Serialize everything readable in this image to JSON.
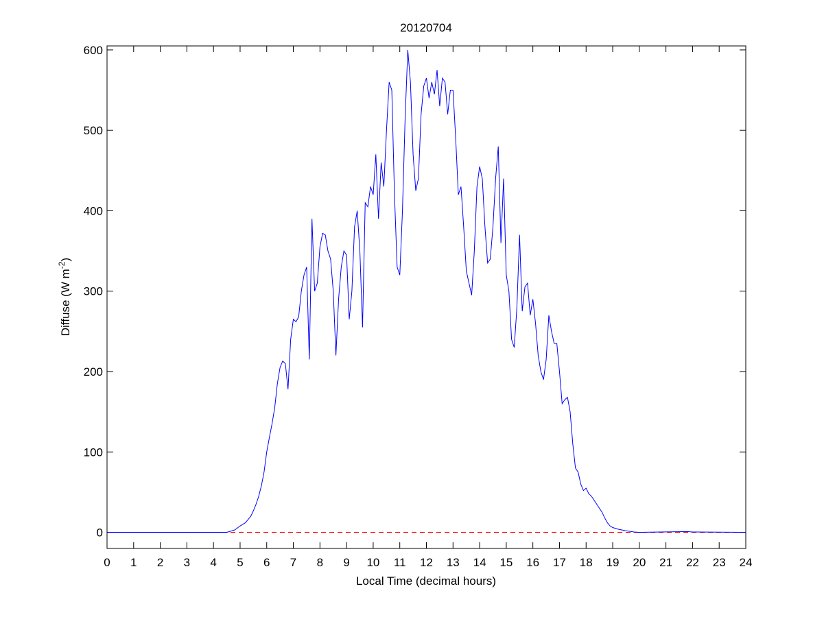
{
  "chart_data": {
    "type": "line",
    "title": "20120704",
    "x_label": "Local Time (decimal hours)",
    "y_label": {
      "text": "Diffuse (W m",
      "superscript": "-2",
      "suffix": ")"
    },
    "xlim": [
      0,
      24
    ],
    "xticks": [
      0,
      1,
      2,
      3,
      4,
      5,
      6,
      7,
      8,
      9,
      10,
      11,
      12,
      13,
      14,
      15,
      16,
      17,
      18,
      19,
      20,
      21,
      22,
      23,
      24
    ],
    "ylim": [
      -20,
      605
    ],
    "yticks": [
      0,
      100,
      200,
      300,
      400,
      500,
      600
    ],
    "grid": false,
    "reference_line": {
      "value": 0,
      "color": "#ff0000",
      "style": "dashed"
    },
    "x": [
      0,
      4.5,
      4.6,
      4.8,
      5.0,
      5.1,
      5.2,
      5.3,
      5.4,
      5.5,
      5.6,
      5.7,
      5.8,
      5.9,
      6.0,
      6.1,
      6.2,
      6.3,
      6.4,
      6.5,
      6.6,
      6.7,
      6.8,
      6.9,
      7.0,
      7.1,
      7.2,
      7.3,
      7.4,
      7.5,
      7.6,
      7.7,
      7.8,
      7.9,
      8.0,
      8.1,
      8.2,
      8.3,
      8.4,
      8.5,
      8.6,
      8.7,
      8.8,
      8.9,
      9.0,
      9.1,
      9.2,
      9.3,
      9.4,
      9.5,
      9.6,
      9.7,
      9.8,
      9.9,
      10.0,
      10.1,
      10.2,
      10.3,
      10.4,
      10.5,
      10.6,
      10.7,
      10.8,
      10.9,
      11.0,
      11.1,
      11.2,
      11.3,
      11.4,
      11.5,
      11.6,
      11.7,
      11.8,
      11.9,
      12.0,
      12.1,
      12.2,
      12.3,
      12.4,
      12.5,
      12.6,
      12.7,
      12.8,
      12.9,
      13.0,
      13.1,
      13.2,
      13.3,
      13.4,
      13.5,
      13.6,
      13.7,
      13.8,
      13.9,
      14.0,
      14.1,
      14.2,
      14.3,
      14.4,
      14.5,
      14.6,
      14.7,
      14.8,
      14.9,
      15.0,
      15.1,
      15.2,
      15.3,
      15.4,
      15.5,
      15.6,
      15.7,
      15.8,
      15.9,
      16.0,
      16.1,
      16.2,
      16.3,
      16.4,
      16.5,
      16.6,
      16.7,
      16.8,
      16.9,
      17.0,
      17.1,
      17.2,
      17.3,
      17.4,
      17.5,
      17.6,
      17.7,
      17.8,
      17.9,
      18.0,
      18.1,
      18.2,
      18.3,
      18.4,
      18.5,
      18.6,
      18.7,
      18.8,
      18.9,
      19.0,
      19.2,
      19.5,
      19.8,
      20.0,
      21.8,
      22.0,
      24
    ],
    "series": [
      {
        "color": "#0000ff",
        "values": [
          0,
          0,
          1,
          3,
          8,
          10,
          12,
          16,
          20,
          27,
          35,
          45,
          58,
          75,
          100,
          118,
          135,
          155,
          185,
          205,
          213,
          210,
          178,
          240,
          265,
          262,
          268,
          300,
          320,
          330,
          215,
          390,
          300,
          310,
          355,
          372,
          370,
          350,
          340,
          300,
          220,
          290,
          330,
          350,
          345,
          265,
          300,
          380,
          400,
          350,
          255,
          410,
          405,
          430,
          420,
          470,
          390,
          460,
          430,
          500,
          560,
          550,
          420,
          330,
          320,
          400,
          515,
          600,
          560,
          470,
          425,
          440,
          520,
          555,
          565,
          540,
          560,
          545,
          575,
          530,
          565,
          560,
          520,
          550,
          550,
          490,
          420,
          430,
          380,
          325,
          310,
          295,
          350,
          430,
          455,
          440,
          380,
          335,
          340,
          380,
          440,
          480,
          360,
          440,
          320,
          300,
          240,
          230,
          280,
          370,
          275,
          305,
          310,
          270,
          290,
          260,
          220,
          200,
          190,
          215,
          270,
          250,
          235,
          235,
          200,
          160,
          165,
          168,
          150,
          110,
          80,
          75,
          60,
          52,
          55,
          48,
          45,
          40,
          35,
          30,
          25,
          18,
          12,
          8,
          6,
          4,
          2,
          0.5,
          0,
          1,
          0.5,
          0
        ]
      }
    ]
  }
}
